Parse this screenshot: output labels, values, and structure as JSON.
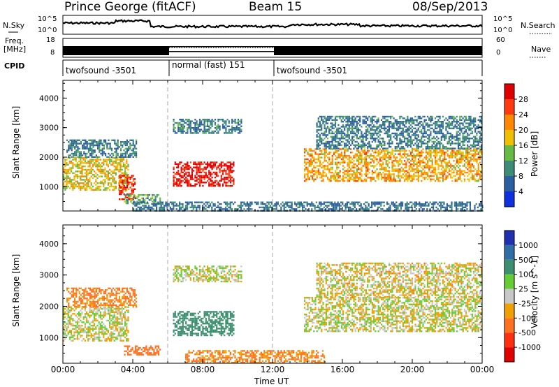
{
  "header": {
    "site": "Prince George (fitACF)",
    "beam": "Beam 15",
    "date": "08/Sep/2013"
  },
  "sky_panel": {
    "left_label": "N.Sky",
    "left_top_tick": "10^5",
    "left_bottom_tick": "10^0",
    "right_label": "N.Search",
    "right_top_tick": "10^5",
    "right_bottom_tick": "10^0"
  },
  "freq_panel": {
    "left_label_1": "Freq.",
    "left_label_2": "[MHz]",
    "left_top_tick": "18",
    "left_bottom_tick": "8",
    "right_label": "Nave",
    "right_top_tick": "60",
    "right_bottom_tick": "0"
  },
  "cpid_panel": {
    "label": "CPID",
    "modes": [
      {
        "name": "twofsound -3501",
        "start_h": 0,
        "end_h": 6
      },
      {
        "name": "normal (fast) 151",
        "start_h": 6,
        "end_h": 12
      },
      {
        "name": "twofsound -3501",
        "start_h": 12,
        "end_h": 24
      }
    ]
  },
  "power_colorbar": {
    "title": "Power [dB]",
    "ticks": [
      "4",
      "8",
      "12",
      "16",
      "20",
      "24",
      "28"
    ],
    "colors": [
      "#1030e0",
      "#2d5fa0",
      "#3c8c78",
      "#66bb44",
      "#f0c000",
      "#ff8800",
      "#ff3a10",
      "#e00000"
    ]
  },
  "velocity_colorbar": {
    "title": "Velocity [m s^-1]",
    "ticks": [
      "1000",
      "500",
      "100",
      "25",
      "-25",
      "-100",
      "-500",
      "-1000"
    ],
    "colors": [
      "#2030b0",
      "#2f6fa6",
      "#3c9070",
      "#66cc33",
      "#c8c8c8",
      "#f0a000",
      "#ff7020",
      "#ff3010",
      "#e00000"
    ]
  },
  "axes": {
    "y_label": "Slant Range [km]",
    "y_ticks": [
      "1000",
      "2000",
      "3000",
      "4000"
    ],
    "x_label": "Time UT",
    "x_ticks": [
      "00:00",
      "04:00",
      "08:00",
      "12:00",
      "16:00",
      "20:00",
      "00:00"
    ]
  },
  "chart_data": [
    {
      "type": "heatmap",
      "title": "Power [dB]",
      "xlabel": "Time UT",
      "ylabel": "Slant Range [km]",
      "xlim": [
        0,
        24
      ],
      "ylim": [
        180,
        4600
      ],
      "x_unit": "hours UT",
      "regions": [
        {
          "t0": 0.0,
          "t1": 3.7,
          "r0": 900,
          "r1": 2000,
          "level": 16
        },
        {
          "t0": 0.2,
          "t1": 4.2,
          "r0": 2000,
          "r1": 2600,
          "level": 6
        },
        {
          "t0": 3.2,
          "t1": 4.1,
          "r0": 600,
          "r1": 1400,
          "level": 26
        },
        {
          "t0": 3.5,
          "t1": 5.6,
          "r0": 450,
          "r1": 750,
          "level": 10
        },
        {
          "t0": 6.3,
          "t1": 9.8,
          "r0": 1050,
          "r1": 1850,
          "level": 28
        },
        {
          "t0": 6.3,
          "t1": 10.2,
          "r0": 2800,
          "r1": 3300,
          "level": 6
        },
        {
          "t0": 13.8,
          "t1": 24.0,
          "r0": 1200,
          "r1": 2300,
          "level": 18
        },
        {
          "t0": 14.5,
          "t1": 24.0,
          "r0": 2300,
          "r1": 3400,
          "level": 6
        },
        {
          "t0": 4.0,
          "t1": 24.0,
          "r0": 180,
          "r1": 500,
          "level": 5
        }
      ]
    },
    {
      "type": "heatmap",
      "title": "Velocity [m s^-1]",
      "xlabel": "Time UT",
      "ylabel": "Slant Range [km]",
      "xlim": [
        0,
        24
      ],
      "ylim": [
        180,
        4600
      ],
      "x_unit": "hours UT",
      "regions": [
        {
          "t0": 0.0,
          "t1": 3.7,
          "r0": 900,
          "r1": 2000,
          "velocity": 0
        },
        {
          "t0": 0.2,
          "t1": 4.2,
          "r0": 2000,
          "r1": 2600,
          "velocity": -150
        },
        {
          "t0": 3.5,
          "t1": 5.6,
          "r0": 450,
          "r1": 750,
          "velocity": -200
        },
        {
          "t0": 6.3,
          "t1": 9.8,
          "r0": 1050,
          "r1": 1850,
          "velocity": 250
        },
        {
          "t0": 6.3,
          "t1": 10.2,
          "r0": 2800,
          "r1": 3300,
          "velocity": 0
        },
        {
          "t0": 13.8,
          "t1": 24.0,
          "r0": 1200,
          "r1": 2300,
          "velocity": 0
        },
        {
          "t0": 14.5,
          "t1": 24.0,
          "r0": 2300,
          "r1": 3400,
          "velocity": -20
        },
        {
          "t0": 7.0,
          "t1": 15.0,
          "r0": 180,
          "r1": 600,
          "velocity": -110
        }
      ]
    }
  ]
}
